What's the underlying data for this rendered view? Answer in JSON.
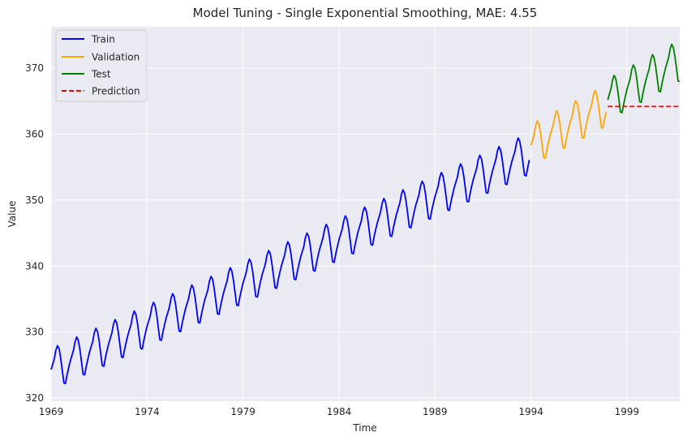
{
  "chart_data": {
    "type": "line",
    "title": "Model Tuning - Single Exponential Smoothing, MAE: 4.55",
    "xlabel": "Time",
    "ylabel": "Value",
    "xlim": [
      1969.0,
      2001.75
    ],
    "ylim": [
      319.5,
      376.3
    ],
    "xticks": [
      1969,
      1974,
      1979,
      1984,
      1989,
      1994,
      1999
    ],
    "xtick_labels": [
      "1969",
      "1974",
      "1979",
      "1984",
      "1989",
      "1994",
      "1999"
    ],
    "yticks": [
      320,
      330,
      340,
      350,
      360,
      370
    ],
    "ytick_labels": [
      "320",
      "330",
      "340",
      "350",
      "360",
      "370"
    ],
    "grid": true,
    "legend_position": "top-left",
    "seasonal_pattern": [
      0.0,
      0.7,
      1.4,
      2.6,
      3.2,
      2.6,
      1.1,
      -0.9,
      -2.9,
      -3.1,
      -1.9,
      -0.9
    ],
    "series": [
      {
        "name": "Train",
        "color": "#0000ff",
        "dashed": false,
        "start": 1969.0,
        "end": 1993.917,
        "trend_start": 324.3,
        "trend_end": 357.0
      },
      {
        "name": "Validation",
        "color": "#ffa500",
        "dashed": false,
        "start": 1994.0,
        "end": 1997.917,
        "trend_start": 358.3,
        "trend_end": 364.3
      },
      {
        "name": "Test",
        "color": "#008000",
        "dashed": false,
        "start": 1998.0,
        "end": 2001.75,
        "trend_start": 365.2,
        "trend_end": 371.1
      },
      {
        "name": "Prediction",
        "color": "#ff0000",
        "dashed": true,
        "start": 1998.0,
        "end": 2001.75,
        "constant": 364.2
      }
    ]
  }
}
